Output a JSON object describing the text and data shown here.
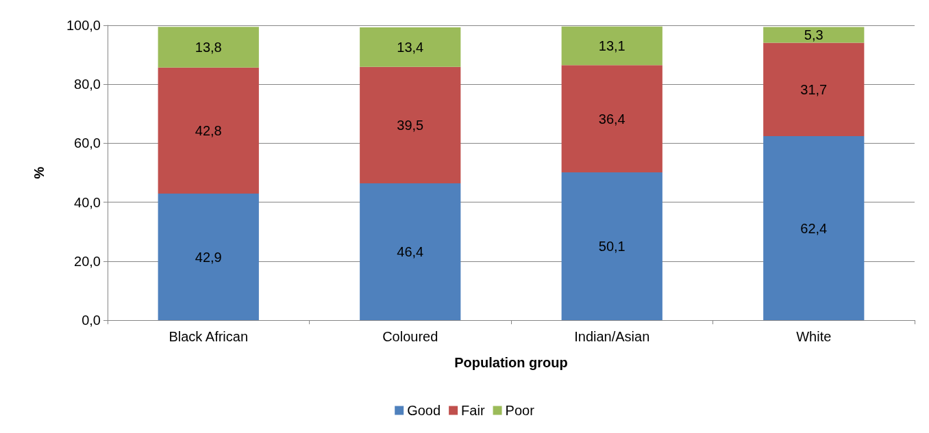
{
  "chart_data": {
    "type": "bar",
    "stacked": true,
    "xlabel": "Population group",
    "ylabel": "%",
    "categories": [
      "Black African",
      "Coloured",
      "Indian/Asian",
      "White"
    ],
    "series": [
      {
        "name": "Good",
        "color": "#4f81bd",
        "values": [
          42.9,
          46.4,
          50.1,
          62.4
        ],
        "value_labels": [
          "42,9",
          "46,4",
          "50,1",
          "62,4"
        ]
      },
      {
        "name": "Fair",
        "color": "#c0504d",
        "values": [
          42.8,
          39.5,
          36.4,
          31.7
        ],
        "value_labels": [
          "42,8",
          "39,5",
          "36,4",
          "31,7"
        ]
      },
      {
        "name": "Poor",
        "color": "#9bbb59",
        "values": [
          13.8,
          13.4,
          13.1,
          5.3
        ],
        "value_labels": [
          "13,8",
          "13,4",
          "13,1",
          "5,3"
        ]
      }
    ],
    "ylim": [
      0,
      100
    ],
    "yticks": [
      {
        "value": 0,
        "label": "0,0"
      },
      {
        "value": 20,
        "label": "20,0"
      },
      {
        "value": 40,
        "label": "40,0"
      },
      {
        "value": 60,
        "label": "60,0"
      },
      {
        "value": 80,
        "label": "80,0"
      },
      {
        "value": 100,
        "label": "100,0"
      }
    ],
    "grid": "y",
    "legend": "bottom"
  }
}
